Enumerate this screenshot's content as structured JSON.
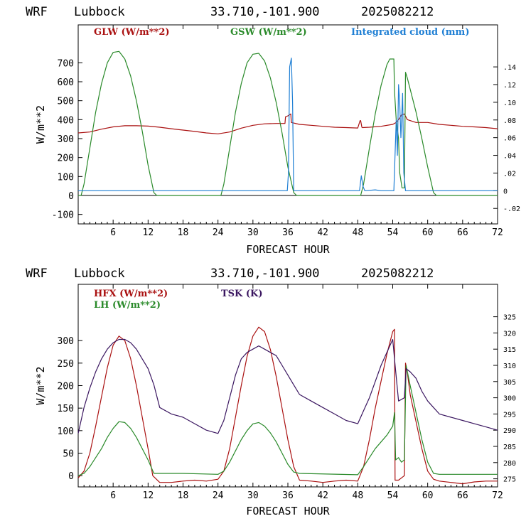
{
  "chart_data": [
    {
      "type": "line",
      "header": {
        "model": "WRF",
        "station": "Lubbock",
        "coords": "33.710,-101.900",
        "run": "2025082212"
      },
      "xlabel": "FORECAST HOUR",
      "ylabel": "W/m**2",
      "xlim": [
        0,
        72
      ],
      "ylim": [
        -150,
        900
      ],
      "y2lim": [
        -0.0375,
        0.1875
      ],
      "xticks": [
        "6",
        "12",
        "18",
        "24",
        "30",
        "36",
        "42",
        "48",
        "54",
        "60",
        "66",
        "72"
      ],
      "yticks": [
        "-100",
        "0",
        "100",
        "200",
        "300",
        "400",
        "500",
        "600",
        "700"
      ],
      "y2ticks": [
        "-.02",
        "0",
        ".02",
        ".04",
        ".06",
        ".08",
        ".10",
        ".12",
        ".14"
      ],
      "zero_line": true,
      "series": [
        {
          "name": "GLW (W/m**2)",
          "color": "#aa1111",
          "axis": "left",
          "x": [
            0,
            2,
            4,
            6,
            8,
            10,
            12,
            14,
            16,
            18,
            20,
            22,
            24,
            26,
            28,
            30,
            32,
            34,
            35.5,
            35.6,
            36,
            36.5,
            36.6,
            38,
            40,
            42,
            44,
            46,
            48,
            48.4,
            48.5,
            48.7,
            48.8,
            50,
            52,
            54,
            54.6,
            55,
            55.5,
            56,
            56.5,
            58,
            60,
            62,
            64,
            66,
            68,
            70,
            72
          ],
          "y": [
            330,
            335,
            350,
            362,
            368,
            368,
            366,
            360,
            352,
            345,
            338,
            330,
            325,
            335,
            355,
            370,
            378,
            380,
            380,
            415,
            420,
            430,
            385,
            375,
            370,
            365,
            360,
            358,
            356,
            395,
            395,
            360,
            358,
            360,
            365,
            375,
            385,
            400,
            425,
            430,
            400,
            385,
            385,
            375,
            370,
            365,
            362,
            358,
            352
          ]
        },
        {
          "name": "GSW (W/m**2)",
          "color": "#2a8a2a",
          "axis": "left",
          "x": [
            0,
            0.5,
            1,
            2,
            3,
            4,
            5,
            6,
            7,
            8,
            9,
            10,
            11,
            12,
            13,
            13.5,
            24,
            24.5,
            25,
            26,
            27,
            28,
            29,
            30,
            31,
            32,
            33,
            34,
            35,
            36,
            37,
            37.5,
            48,
            48.5,
            49,
            50,
            51,
            52,
            53,
            53.5,
            54.2,
            54.3,
            54.6,
            55,
            55.2,
            55.6,
            56,
            56.2,
            56.5,
            57,
            58,
            59,
            60,
            61,
            61.5,
            72
          ],
          "y": [
            0,
            0,
            60,
            250,
            440,
            590,
            700,
            755,
            760,
            720,
            630,
            500,
            340,
            160,
            15,
            0,
            0,
            0,
            60,
            250,
            440,
            590,
            700,
            745,
            750,
            710,
            620,
            490,
            330,
            150,
            15,
            0,
            0,
            0,
            60,
            250,
            430,
            580,
            690,
            720,
            720,
            550,
            400,
            300,
            120,
            40,
            40,
            650,
            620,
            560,
            440,
            300,
            150,
            15,
            0,
            0
          ]
        },
        {
          "name": "Integrated cloud (mm)",
          "color": "#1f7fd4",
          "axis": "right",
          "x": [
            0,
            35.9,
            36.1,
            36.3,
            36.6,
            36.8,
            37,
            37.4,
            48.3,
            48.6,
            48.9,
            49.2,
            51,
            52,
            53.5,
            54.2,
            54.6,
            54.8,
            55,
            55.2,
            55.4,
            55.7,
            55.9,
            56.2,
            72
          ],
          "y": [
            0,
            0,
            0.02,
            0.14,
            0.15,
            0.1,
            0,
            0,
            0,
            0.017,
            0.005,
            0,
            0.001,
            0,
            0,
            0,
            0.08,
            0.04,
            0.12,
            0.1,
            0.06,
            0.11,
            0.02,
            0,
            0
          ]
        }
      ]
    },
    {
      "type": "line",
      "header": {
        "model": "WRF",
        "station": "Lubbock",
        "coords": "33.710,-101.900",
        "run": "2025082212"
      },
      "xlabel": "FORECAST HOUR",
      "ylabel": "W/m**2",
      "xlim": [
        0,
        72
      ],
      "ylim": [
        -25,
        425
      ],
      "y2lim": [
        272.5,
        335
      ],
      "xticks": [
        "6",
        "12",
        "18",
        "24",
        "30",
        "36",
        "42",
        "48",
        "54",
        "60",
        "66",
        "72"
      ],
      "yticks": [
        "0",
        "50",
        "100",
        "150",
        "200",
        "250",
        "300"
      ],
      "y2ticks": [
        "275",
        "280",
        "285",
        "290",
        "295",
        "300",
        "305",
        "310",
        "315",
        "320",
        "325"
      ],
      "series": [
        {
          "name": "HFX (W/m**2)",
          "color": "#aa1111",
          "axis": "left",
          "x": [
            0,
            1,
            2,
            3,
            4,
            5,
            6,
            7,
            8,
            9,
            10,
            11,
            12,
            12.8,
            14,
            16,
            18,
            20,
            22,
            24,
            25,
            26,
            27,
            28,
            29,
            30,
            31,
            32,
            33,
            34,
            35,
            36,
            37,
            38,
            40,
            42,
            44,
            46,
            48,
            49,
            50,
            51,
            52,
            53,
            54,
            54.3,
            54.4,
            55,
            56,
            56.2,
            56.5,
            57,
            58,
            59,
            60,
            61,
            62,
            64,
            66,
            68,
            70,
            72
          ],
          "y": [
            -5,
            10,
            50,
            110,
            175,
            240,
            290,
            310,
            300,
            260,
            200,
            130,
            60,
            0,
            -15,
            -15,
            -12,
            -10,
            -12,
            -8,
            10,
            60,
            130,
            200,
            265,
            310,
            330,
            320,
            280,
            220,
            150,
            80,
            20,
            -10,
            -12,
            -15,
            -12,
            -10,
            -12,
            20,
            80,
            150,
            210,
            270,
            320,
            325,
            -10,
            -10,
            0,
            250,
            230,
            180,
            120,
            60,
            10,
            -8,
            -12,
            -15,
            -18,
            -14,
            -12,
            -12
          ]
        },
        {
          "name": "LH (W/m**2)",
          "color": "#2a8a2a",
          "axis": "left",
          "x": [
            0,
            1,
            2,
            3,
            4,
            5,
            6,
            7,
            8,
            9,
            10,
            11,
            12,
            13,
            18,
            24,
            25,
            26,
            27,
            28,
            29,
            30,
            31,
            32,
            33,
            34,
            35,
            36,
            37,
            38,
            48,
            49,
            50,
            51,
            52,
            53,
            54,
            54.3,
            54.5,
            55,
            55.5,
            56,
            56.3,
            57,
            58,
            59,
            60,
            61,
            62,
            72
          ],
          "y": [
            0,
            5,
            20,
            40,
            60,
            85,
            105,
            120,
            118,
            105,
            85,
            60,
            35,
            5,
            5,
            3,
            10,
            30,
            55,
            80,
            100,
            115,
            118,
            110,
            95,
            75,
            50,
            25,
            8,
            5,
            2,
            20,
            40,
            60,
            75,
            90,
            110,
            140,
            35,
            40,
            30,
            35,
            245,
            200,
            140,
            80,
            30,
            5,
            3,
            3
          ]
        },
        {
          "name": "TSK (K)",
          "color": "#3a1660",
          "axis": "right",
          "x": [
            0,
            1,
            2,
            3,
            4,
            5,
            6,
            7,
            8,
            9,
            10,
            11,
            12,
            13,
            14,
            16,
            18,
            20,
            22,
            24,
            25,
            26,
            27,
            28,
            29,
            30,
            31,
            32,
            33,
            34,
            35,
            36,
            37,
            38,
            40,
            42,
            44,
            46,
            48,
            49,
            50,
            51,
            52,
            53,
            54,
            54.3,
            55,
            56,
            56.3,
            57,
            58,
            59,
            60,
            61,
            62,
            64,
            66,
            68,
            70,
            72
          ],
          "y": [
            289,
            297,
            303,
            308,
            312,
            315,
            317,
            318,
            318,
            317,
            315,
            312,
            309,
            304,
            297,
            295,
            294,
            292,
            290,
            289,
            293,
            300,
            307,
            312,
            314,
            315,
            316,
            315,
            314,
            313,
            310,
            307,
            304,
            301,
            299,
            297,
            295,
            293,
            292,
            296,
            300,
            305,
            310,
            314,
            318,
            312,
            299,
            300,
            309,
            308,
            306,
            302,
            299,
            297,
            295,
            294,
            293,
            292,
            291,
            290
          ]
        }
      ]
    }
  ]
}
